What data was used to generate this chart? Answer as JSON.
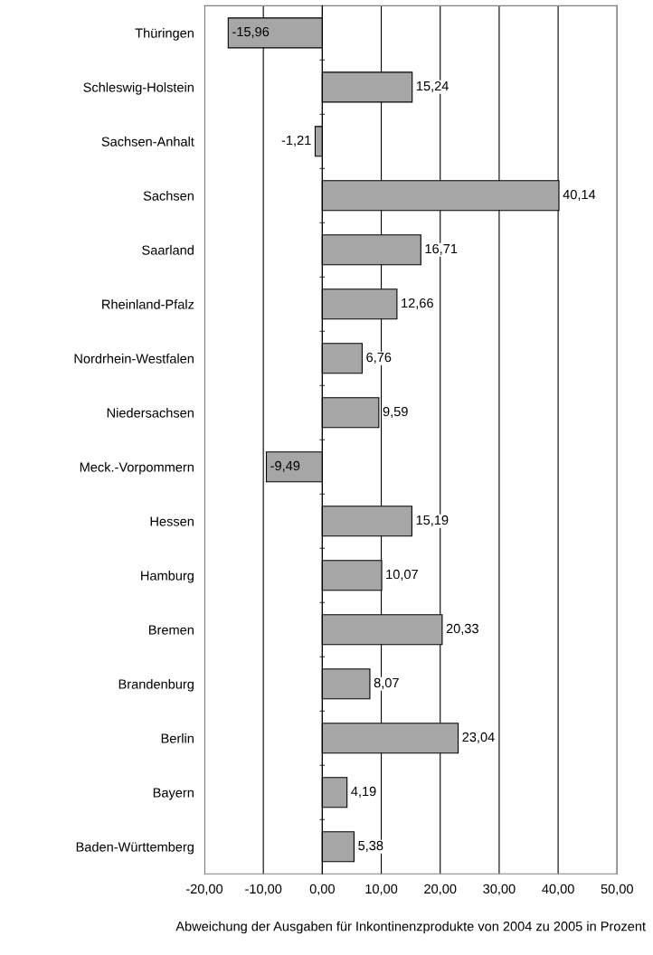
{
  "chart_data": {
    "type": "bar",
    "orientation": "horizontal",
    "xlabel": "Abweichung der Ausgaben für Inkontinenzprodukte von 2004 zu 2005 in Prozent",
    "categories": [
      "Thüringen",
      "Schleswig-Holstein",
      "Sachsen-Anhalt",
      "Sachsen",
      "Saarland",
      "Rheinland-Pfalz",
      "Nordrhein-Westfalen",
      "Niedersachsen",
      "Meck.-Vorpommern",
      "Hessen",
      "Hamburg",
      "Bremen",
      "Brandenburg",
      "Berlin",
      "Bayern",
      "Baden-Württemberg"
    ],
    "values": [
      -15.96,
      15.24,
      -1.21,
      40.14,
      16.71,
      12.66,
      6.76,
      9.59,
      -9.49,
      15.19,
      10.07,
      20.33,
      8.07,
      23.04,
      4.19,
      5.38
    ],
    "value_labels": [
      "-15,96",
      "15,24",
      "-1,21",
      "40,14",
      "16,71",
      "12,66",
      "6,76",
      "9,59",
      "-9,49",
      "15,19",
      "10,07",
      "20,33",
      "8,07",
      "23,04",
      "4,19",
      "5,38"
    ],
    "color": "#a6a6a6",
    "xlim": [
      -20,
      50
    ],
    "xticks": [
      {
        "value": -20,
        "label": "-20,00"
      },
      {
        "value": -10,
        "label": "-10,00"
      },
      {
        "value": 0,
        "label": "0,00"
      },
      {
        "value": 10,
        "label": "10,00"
      },
      {
        "value": 20,
        "label": "20,00"
      },
      {
        "value": 30,
        "label": "30,00"
      },
      {
        "value": 40,
        "label": "40,00"
      },
      {
        "value": 50,
        "label": "50,00"
      }
    ],
    "grid": "x"
  }
}
